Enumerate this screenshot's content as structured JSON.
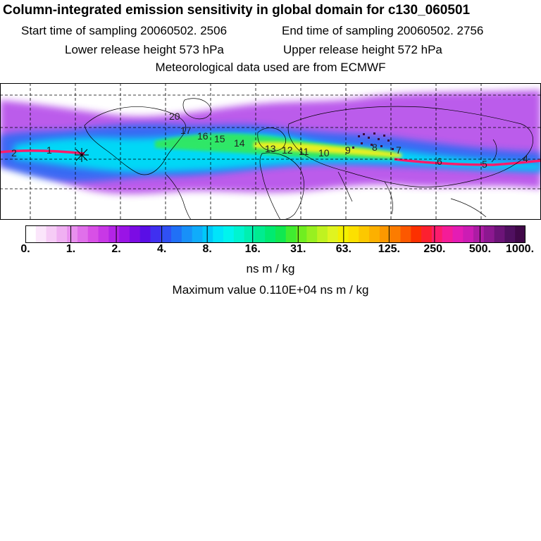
{
  "header": {
    "title": "Column-integrated emission sensitivity in global domain for c130_060501",
    "start_time": "Start time of sampling 20060502.  2506",
    "end_time": "End time of sampling 20060502.  2756",
    "lower_height": "Lower release height  573 hPa",
    "upper_height": "Upper release height  572 hPa",
    "met_data": "Meteorological data used are from ECMWF"
  },
  "colorbar": {
    "labels": [
      "0.",
      "1.",
      "2.",
      "4.",
      "8.",
      "16.",
      "31.",
      "63.",
      "125.",
      "250.",
      "500.",
      "1000."
    ],
    "colors": [
      "#ffffff",
      "#fbe6fb",
      "#f6ccf6",
      "#f0b0f2",
      "#e890ee",
      "#e070ea",
      "#d850e6",
      "#c838e6",
      "#b424e6",
      "#9a14e6",
      "#7c0ce4",
      "#5a0ee6",
      "#4030f0",
      "#3050f4",
      "#2070f6",
      "#1890f8",
      "#10acfa",
      "#00c8fa",
      "#00e4fa",
      "#00f4ee",
      "#00f4d0",
      "#00f0b0",
      "#00ec90",
      "#00ea70",
      "#10e850",
      "#40ec30",
      "#70ee20",
      "#98f020",
      "#c0f220",
      "#e0f420",
      "#f4f000",
      "#fce000",
      "#fcc800",
      "#fcb000",
      "#fc9800",
      "#fc7c00",
      "#fc5800",
      "#fc3000",
      "#fc2030",
      "#fc1c6c",
      "#f41c98",
      "#e41cb4",
      "#cc1cb4",
      "#ac1ca4",
      "#8c1890",
      "#6c1478",
      "#501060",
      "#400848"
    ],
    "units": "ns m / kg",
    "max_value": "Maximum value  0.110E+04 ns m / kg"
  },
  "map": {
    "day_labels": [
      "2",
      "1",
      "20",
      "17",
      "16",
      "15",
      "14",
      "13",
      "12",
      "11",
      "10",
      "9",
      "8",
      "7",
      "6",
      "5",
      "4"
    ],
    "plume_colors": {
      "outer": "#b040e8",
      "blue": "#2a6cf4",
      "cyan": "#00d8f6",
      "green": "#30e860",
      "yellow": "#e8f020",
      "core": "#fc1c6c"
    }
  }
}
